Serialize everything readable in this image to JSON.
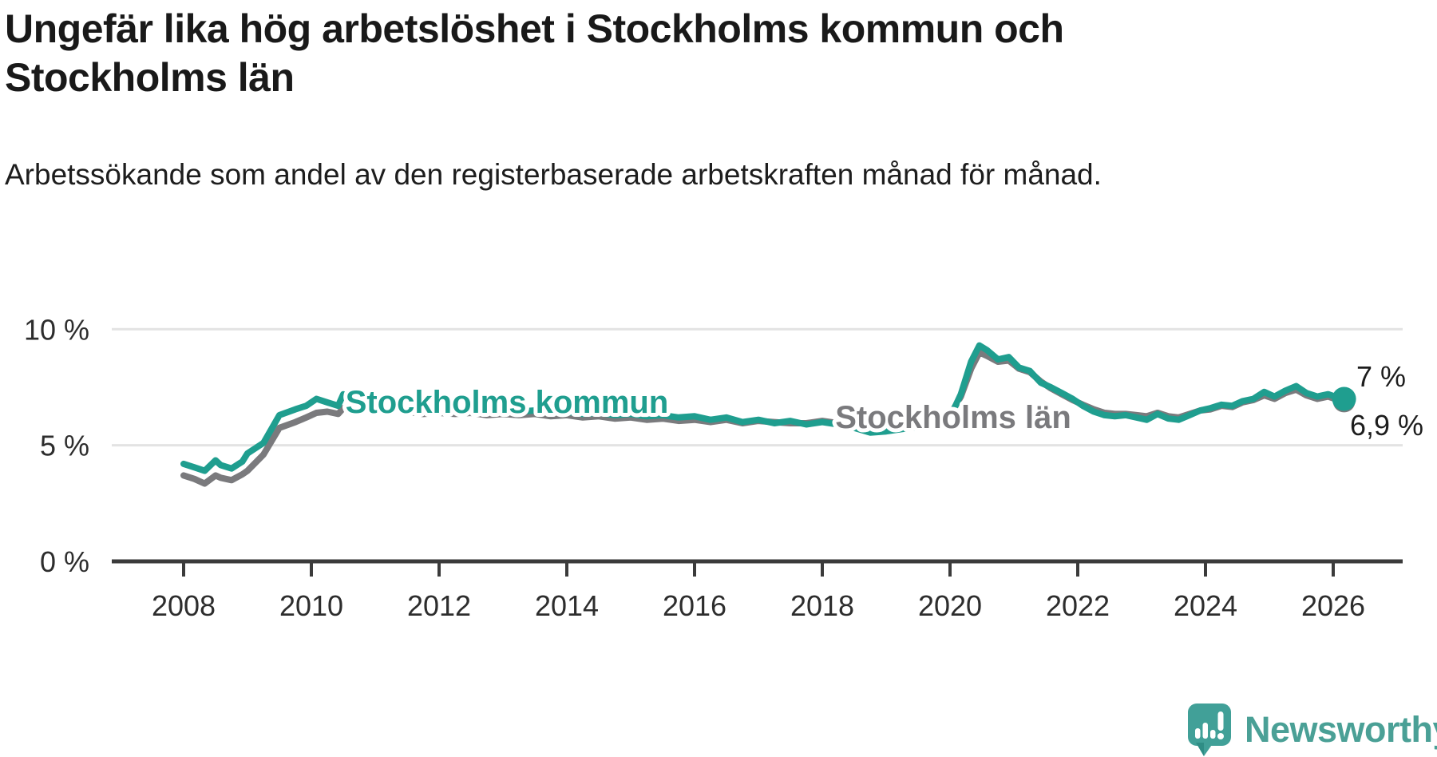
{
  "header": {
    "title": "Ungefär lika hög arbetslöshet i Stockholms kommun och Stockholms län",
    "subtitle": "Arbetssökande som andel av den registerbaserade arbetskraften månad för månad."
  },
  "footer": {
    "logo_text": "Newsworthy",
    "logo_color": "#4aa096",
    "logo_bubble_color": "#41a098"
  },
  "chart_data": {
    "type": "line",
    "title": "Ungefär lika hög arbetslöshet i Stockholms kommun och Stockholms län",
    "subtitle": "Arbetssökande som andel av den registerbaserade arbetskraften månad för månad.",
    "unit": "%",
    "xlim": [
      2008,
      2026.4
    ],
    "ylim": [
      0,
      10.5
    ],
    "grid": "horizontal",
    "legend_position": "inline-labels",
    "x_ticks": [
      2008,
      2010,
      2012,
      2014,
      2016,
      2018,
      2020,
      2022,
      2024,
      2026
    ],
    "y_ticks": [
      {
        "value": 10,
        "label": "10 %"
      },
      {
        "value": 5,
        "label": "5 %"
      },
      {
        "value": 0,
        "label": "0 %"
      }
    ],
    "x": [
      2008.0,
      2008.17,
      2008.33,
      2008.5,
      2008.58,
      2008.75,
      2008.92,
      2009.0,
      2009.25,
      2009.5,
      2009.75,
      2009.92,
      2010.08,
      2010.25,
      2010.42,
      2010.5,
      2010.67,
      2010.83,
      2011.0,
      2011.17,
      2011.33,
      2011.5,
      2011.75,
      2012.0,
      2012.25,
      2012.5,
      2012.75,
      2013.0,
      2013.25,
      2013.5,
      2013.75,
      2014.0,
      2014.25,
      2014.5,
      2014.75,
      2015.0,
      2015.25,
      2015.5,
      2015.75,
      2016.0,
      2016.25,
      2016.5,
      2016.75,
      2017.0,
      2017.25,
      2017.5,
      2017.75,
      2018.0,
      2018.25,
      2018.5,
      2018.75,
      2019.0,
      2019.25,
      2019.5,
      2019.75,
      2020.0,
      2020.17,
      2020.33,
      2020.46,
      2020.58,
      2020.75,
      2020.92,
      2021.08,
      2021.25,
      2021.42,
      2021.58,
      2021.75,
      2021.92,
      2022.08,
      2022.25,
      2022.42,
      2022.58,
      2022.75,
      2022.92,
      2023.08,
      2023.25,
      2023.42,
      2023.58,
      2023.75,
      2023.92,
      2024.08,
      2024.25,
      2024.42,
      2024.58,
      2024.75,
      2024.92,
      2025.08,
      2025.25,
      2025.42,
      2025.58,
      2025.75,
      2025.92,
      2026.08,
      2026.17
    ],
    "series": [
      {
        "name": "Stockholms kommun",
        "color": "#1f9e8f",
        "end_value_label": "7 %",
        "values": [
          4.2,
          4.05,
          3.9,
          4.35,
          4.15,
          4.0,
          4.3,
          4.65,
          5.1,
          6.3,
          6.55,
          6.7,
          7.0,
          6.85,
          6.7,
          7.2,
          7.0,
          7.15,
          6.95,
          6.85,
          6.8,
          6.7,
          6.6,
          6.65,
          6.55,
          6.6,
          6.5,
          6.55,
          6.45,
          6.5,
          6.4,
          6.45,
          6.35,
          6.4,
          6.3,
          6.35,
          6.25,
          6.3,
          6.2,
          6.25,
          6.1,
          6.2,
          6.0,
          6.1,
          5.95,
          6.05,
          5.9,
          6.0,
          5.9,
          5.75,
          5.55,
          5.6,
          5.7,
          5.8,
          5.95,
          6.2,
          7.2,
          8.6,
          9.3,
          9.1,
          8.7,
          8.8,
          8.35,
          8.2,
          7.7,
          7.5,
          7.25,
          7.0,
          6.7,
          6.45,
          6.3,
          6.25,
          6.3,
          6.2,
          6.1,
          6.35,
          6.15,
          6.1,
          6.3,
          6.5,
          6.6,
          6.75,
          6.7,
          6.9,
          7.0,
          7.3,
          7.1,
          7.35,
          7.55,
          7.25,
          7.1,
          7.2,
          7.05,
          7.0
        ]
      },
      {
        "name": "Stockholms län",
        "color": "#7a7a7d",
        "end_value_label": "6,9 %",
        "values": [
          3.7,
          3.55,
          3.35,
          3.7,
          3.6,
          3.5,
          3.75,
          3.9,
          4.6,
          5.75,
          6.0,
          6.2,
          6.4,
          6.45,
          6.35,
          6.6,
          6.55,
          6.6,
          6.7,
          6.6,
          6.65,
          6.45,
          6.35,
          6.4,
          6.35,
          6.4,
          6.3,
          6.35,
          6.3,
          6.35,
          6.25,
          6.3,
          6.2,
          6.25,
          6.15,
          6.2,
          6.1,
          6.15,
          6.05,
          6.1,
          6.0,
          6.1,
          5.95,
          6.05,
          6.0,
          5.95,
          5.95,
          6.05,
          5.95,
          5.85,
          5.8,
          5.85,
          5.9,
          5.95,
          6.05,
          6.3,
          7.1,
          8.3,
          9.0,
          8.85,
          8.6,
          8.65,
          8.3,
          8.15,
          7.75,
          7.45,
          7.2,
          6.95,
          6.75,
          6.55,
          6.4,
          6.35,
          6.35,
          6.3,
          6.25,
          6.4,
          6.25,
          6.2,
          6.35,
          6.5,
          6.55,
          6.7,
          6.65,
          6.85,
          6.95,
          7.15,
          7.0,
          7.25,
          7.4,
          7.15,
          7.0,
          7.1,
          6.95,
          6.9
        ]
      }
    ],
    "end_labels": {
      "kommun": "7 %",
      "lan": "6,9 %"
    },
    "colors": {
      "grid": "#e3e3e3",
      "axis": "#3b3b3b",
      "tick_text": "#2d2d2d"
    }
  }
}
